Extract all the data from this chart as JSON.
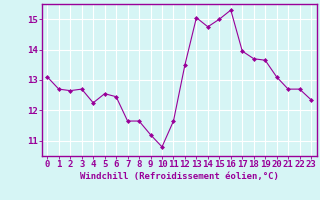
{
  "x": [
    0,
    1,
    2,
    3,
    4,
    5,
    6,
    7,
    8,
    9,
    10,
    11,
    12,
    13,
    14,
    15,
    16,
    17,
    18,
    19,
    20,
    21,
    22,
    23
  ],
  "y": [
    13.1,
    12.7,
    12.65,
    12.7,
    12.25,
    12.55,
    12.45,
    11.65,
    11.65,
    11.2,
    10.8,
    11.65,
    13.5,
    15.05,
    14.75,
    15.0,
    15.3,
    13.95,
    13.7,
    13.65,
    13.1,
    12.7,
    12.7,
    12.35
  ],
  "line_color": "#990099",
  "marker": "D",
  "marker_size": 2,
  "bg_color": "#d6f5f5",
  "grid_color": "#ffffff",
  "xlabel": "Windchill (Refroidissement éolien,°C)",
  "xlabel_color": "#990099",
  "tick_color": "#990099",
  "ylim": [
    10.5,
    15.5
  ],
  "xlim": [
    -0.5,
    23.5
  ],
  "yticks": [
    11,
    12,
    13,
    14,
    15
  ],
  "xticks": [
    0,
    1,
    2,
    3,
    4,
    5,
    6,
    7,
    8,
    9,
    10,
    11,
    12,
    13,
    14,
    15,
    16,
    17,
    18,
    19,
    20,
    21,
    22,
    23
  ],
  "spine_color": "#990099",
  "font_size": 6.5
}
